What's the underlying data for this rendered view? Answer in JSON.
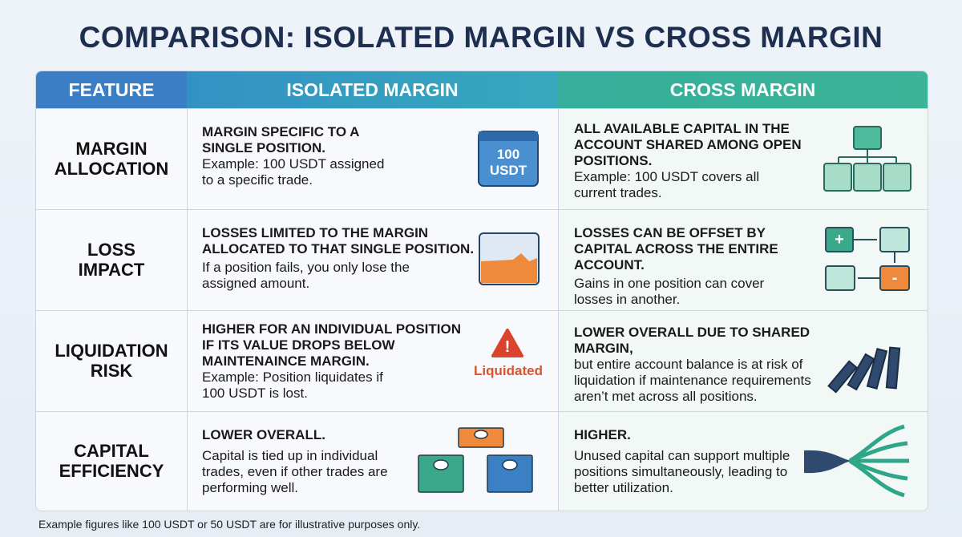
{
  "title": "COMPARISON: ISOLATED MARGIN VS CROSS MARGIN",
  "table": {
    "headers": [
      "FEATURE",
      "ISOLATED MARGIN",
      "CROSS MARGIN"
    ],
    "rows": [
      {
        "feature": "MARGIN ALLOCATION",
        "isolated": {
          "heading": "MARGIN SPECIFIC TO A SINGLE POSITION.",
          "body": "Example: 100 USDT assigned to a specific trade."
        },
        "cross": {
          "heading": "ALL AVAILABLE CAPITAL IN THE ACCOUNT SHARED AMONG OPEN POSITIONS.",
          "body": "Example: 100 USDT covers all current trades."
        }
      },
      {
        "feature": "LOSS IMPACT",
        "isolated": {
          "heading": "LOSSES LIMITED TO THE MARGIN ALLOCATED TO THAT SINGLE POSITION.",
          "body": "If a position fails, you only lose the assigned amount."
        },
        "cross": {
          "heading": "LOSSES CAN BE OFFSET BY CAPITAL ACROSS THE ENTIRE ACCOUNT.",
          "body": "Gains in one position can cover losses in another."
        }
      },
      {
        "feature": "LIQUIDATION RISK",
        "isolated": {
          "heading": "HIGHER FOR AN INDIVIDUAL POSITION IF ITS VALUE DROPS BELOW MAINTENAINCE MARGIN.",
          "body": "Example: Position liquidates if 100 USDT is lost."
        },
        "cross": {
          "heading": "LOWER OVERALL DUE TO SHARED MARGIN,",
          "body": "but entire account balance is at risk of liquidation if maintenance requirements aren’t met across all positions."
        }
      },
      {
        "feature": "CAPITAL EFFICIENCY",
        "isolated": {
          "heading": "LOWER OVERALL.",
          "body": "Capital is tied up in individual trades, even if other trades are performing well."
        },
        "cross": {
          "heading": "HIGHER.",
          "body": "Unused capital can support multiple positions simultaneously, leading to better utilization."
        }
      }
    ]
  },
  "icons": {
    "wallet_amount": [
      "100",
      "USDT"
    ],
    "liquidated": "Liquidated"
  },
  "footnote": "Example figures like 100 USDT or 50 USDT are for illustrative purposes only."
}
